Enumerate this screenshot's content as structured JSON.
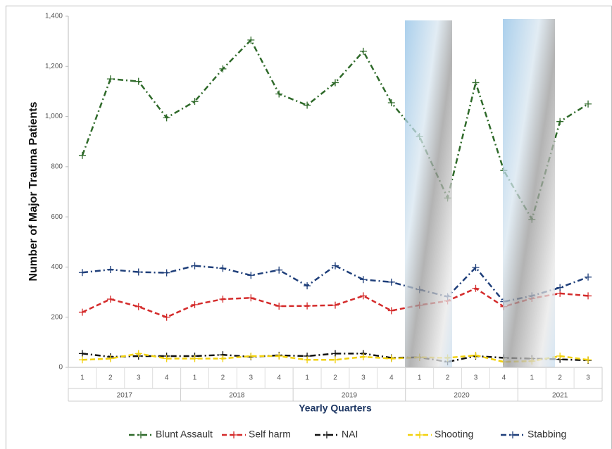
{
  "chart_data": {
    "type": "line",
    "y_label": "Number of Major Trauma Patients",
    "x_label": "Yearly Quarters",
    "groups": [
      {
        "label": "2017",
        "categories": [
          "1",
          "2",
          "3",
          "4"
        ]
      },
      {
        "label": "2018",
        "categories": [
          "1",
          "2",
          "3",
          "4"
        ]
      },
      {
        "label": "2019",
        "categories": [
          "1",
          "2",
          "3",
          "4"
        ]
      },
      {
        "label": "2020",
        "categories": [
          "1",
          "2",
          "3",
          "4"
        ]
      },
      {
        "label": "2021",
        "categories": [
          "1",
          "2",
          "3"
        ]
      }
    ],
    "ylim": [
      0,
      1400
    ],
    "yticks": [
      0,
      200,
      400,
      600,
      800,
      {
        "value": 1000,
        "label": "1,000"
      },
      {
        "value": 1200,
        "label": "1,200"
      },
      {
        "value": 1400,
        "label": "1,400"
      }
    ],
    "legend": "bottom",
    "series": [
      {
        "name": "Blunt Assault",
        "color": "#2f6a2a",
        "line_style": "dash-dot",
        "values": [
          845,
          1150,
          1140,
          995,
          1060,
          1190,
          1305,
          1090,
          1045,
          1135,
          1260,
          1055,
          920,
          675,
          1135,
          785,
          590,
          980,
          1050
        ]
      },
      {
        "name": "Self harm",
        "color": "#d42b2b",
        "line_style": "dash",
        "values": [
          220,
          272,
          242,
          200,
          250,
          272,
          277,
          244,
          245,
          248,
          285,
          226,
          248,
          265,
          315,
          242,
          275,
          295,
          285
        ]
      },
      {
        "name": "NAI",
        "color": "#111111",
        "line_style": "dash-dot",
        "values": [
          55,
          42,
          45,
          45,
          45,
          50,
          42,
          48,
          45,
          55,
          55,
          38,
          40,
          22,
          45,
          38,
          35,
          32,
          28
        ]
      },
      {
        "name": "Shooting",
        "color": "#f2d10c",
        "line_style": "dash",
        "values": [
          30,
          35,
          55,
          35,
          35,
          35,
          45,
          45,
          30,
          30,
          42,
          35,
          40,
          38,
          48,
          22,
          25,
          45,
          30
        ]
      },
      {
        "name": "Stabbing",
        "color": "#1f3f7a",
        "line_style": "dash-dot",
        "values": [
          378,
          390,
          380,
          377,
          405,
          395,
          367,
          388,
          325,
          405,
          350,
          340,
          310,
          282,
          398,
          262,
          285,
          318,
          360
        ]
      }
    ]
  }
}
